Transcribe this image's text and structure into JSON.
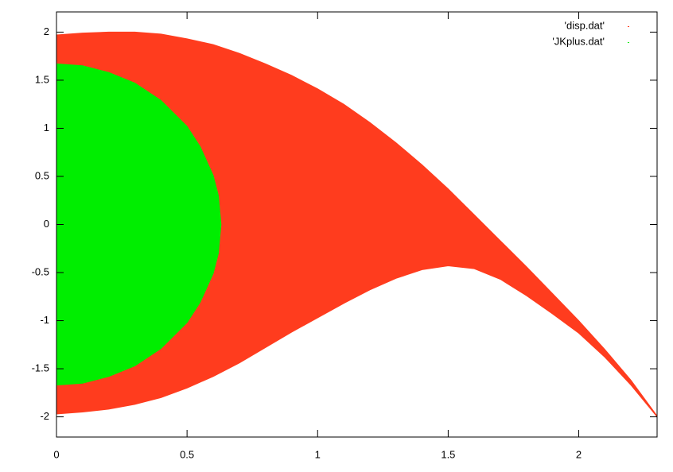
{
  "chart_data": {
    "type": "band",
    "xlim": [
      0,
      2.3
    ],
    "ylim": [
      -2.21,
      2.21
    ],
    "xticks": [
      0,
      0.5,
      1,
      1.5,
      2
    ],
    "yticks": [
      -2,
      -1.5,
      -1,
      -0.5,
      0,
      0.5,
      1,
      1.5,
      2
    ],
    "legend": "upper-right",
    "series": [
      {
        "name": "'disp.dat'",
        "color": "#ff3c1e",
        "x": [
          0,
          0.1,
          0.2,
          0.3,
          0.4,
          0.5,
          0.6,
          0.7,
          0.8,
          0.9,
          1.0,
          1.1,
          1.2,
          1.3,
          1.4,
          1.5,
          1.6,
          1.7,
          1.8,
          1.9,
          2.0,
          2.1,
          2.2,
          2.3
        ],
        "upper": [
          1.97,
          1.99,
          2.0,
          2.0,
          1.98,
          1.93,
          1.87,
          1.78,
          1.67,
          1.55,
          1.41,
          1.25,
          1.06,
          0.85,
          0.62,
          0.37,
          0.1,
          -0.17,
          -0.44,
          -0.72,
          -1.0,
          -1.3,
          -1.62,
          -1.99
        ],
        "lower": [
          -1.97,
          -1.95,
          -1.92,
          -1.87,
          -1.8,
          -1.7,
          -1.58,
          -1.44,
          -1.28,
          -1.12,
          -0.97,
          -0.82,
          -0.68,
          -0.56,
          -0.47,
          -0.43,
          -0.46,
          -0.57,
          -0.74,
          -0.93,
          -1.13,
          -1.38,
          -1.67,
          -2.0
        ]
      },
      {
        "name": "'JKplus.dat'",
        "color": "#00ee00",
        "x": [
          0,
          0.1,
          0.2,
          0.3,
          0.4,
          0.5,
          0.55,
          0.6,
          0.62,
          0.63
        ],
        "upper": [
          1.67,
          1.65,
          1.58,
          1.47,
          1.29,
          1.02,
          0.81,
          0.51,
          0.3,
          0
        ],
        "lower": [
          -1.67,
          -1.65,
          -1.58,
          -1.47,
          -1.29,
          -1.02,
          -0.81,
          -0.51,
          -0.3,
          0
        ]
      }
    ]
  }
}
